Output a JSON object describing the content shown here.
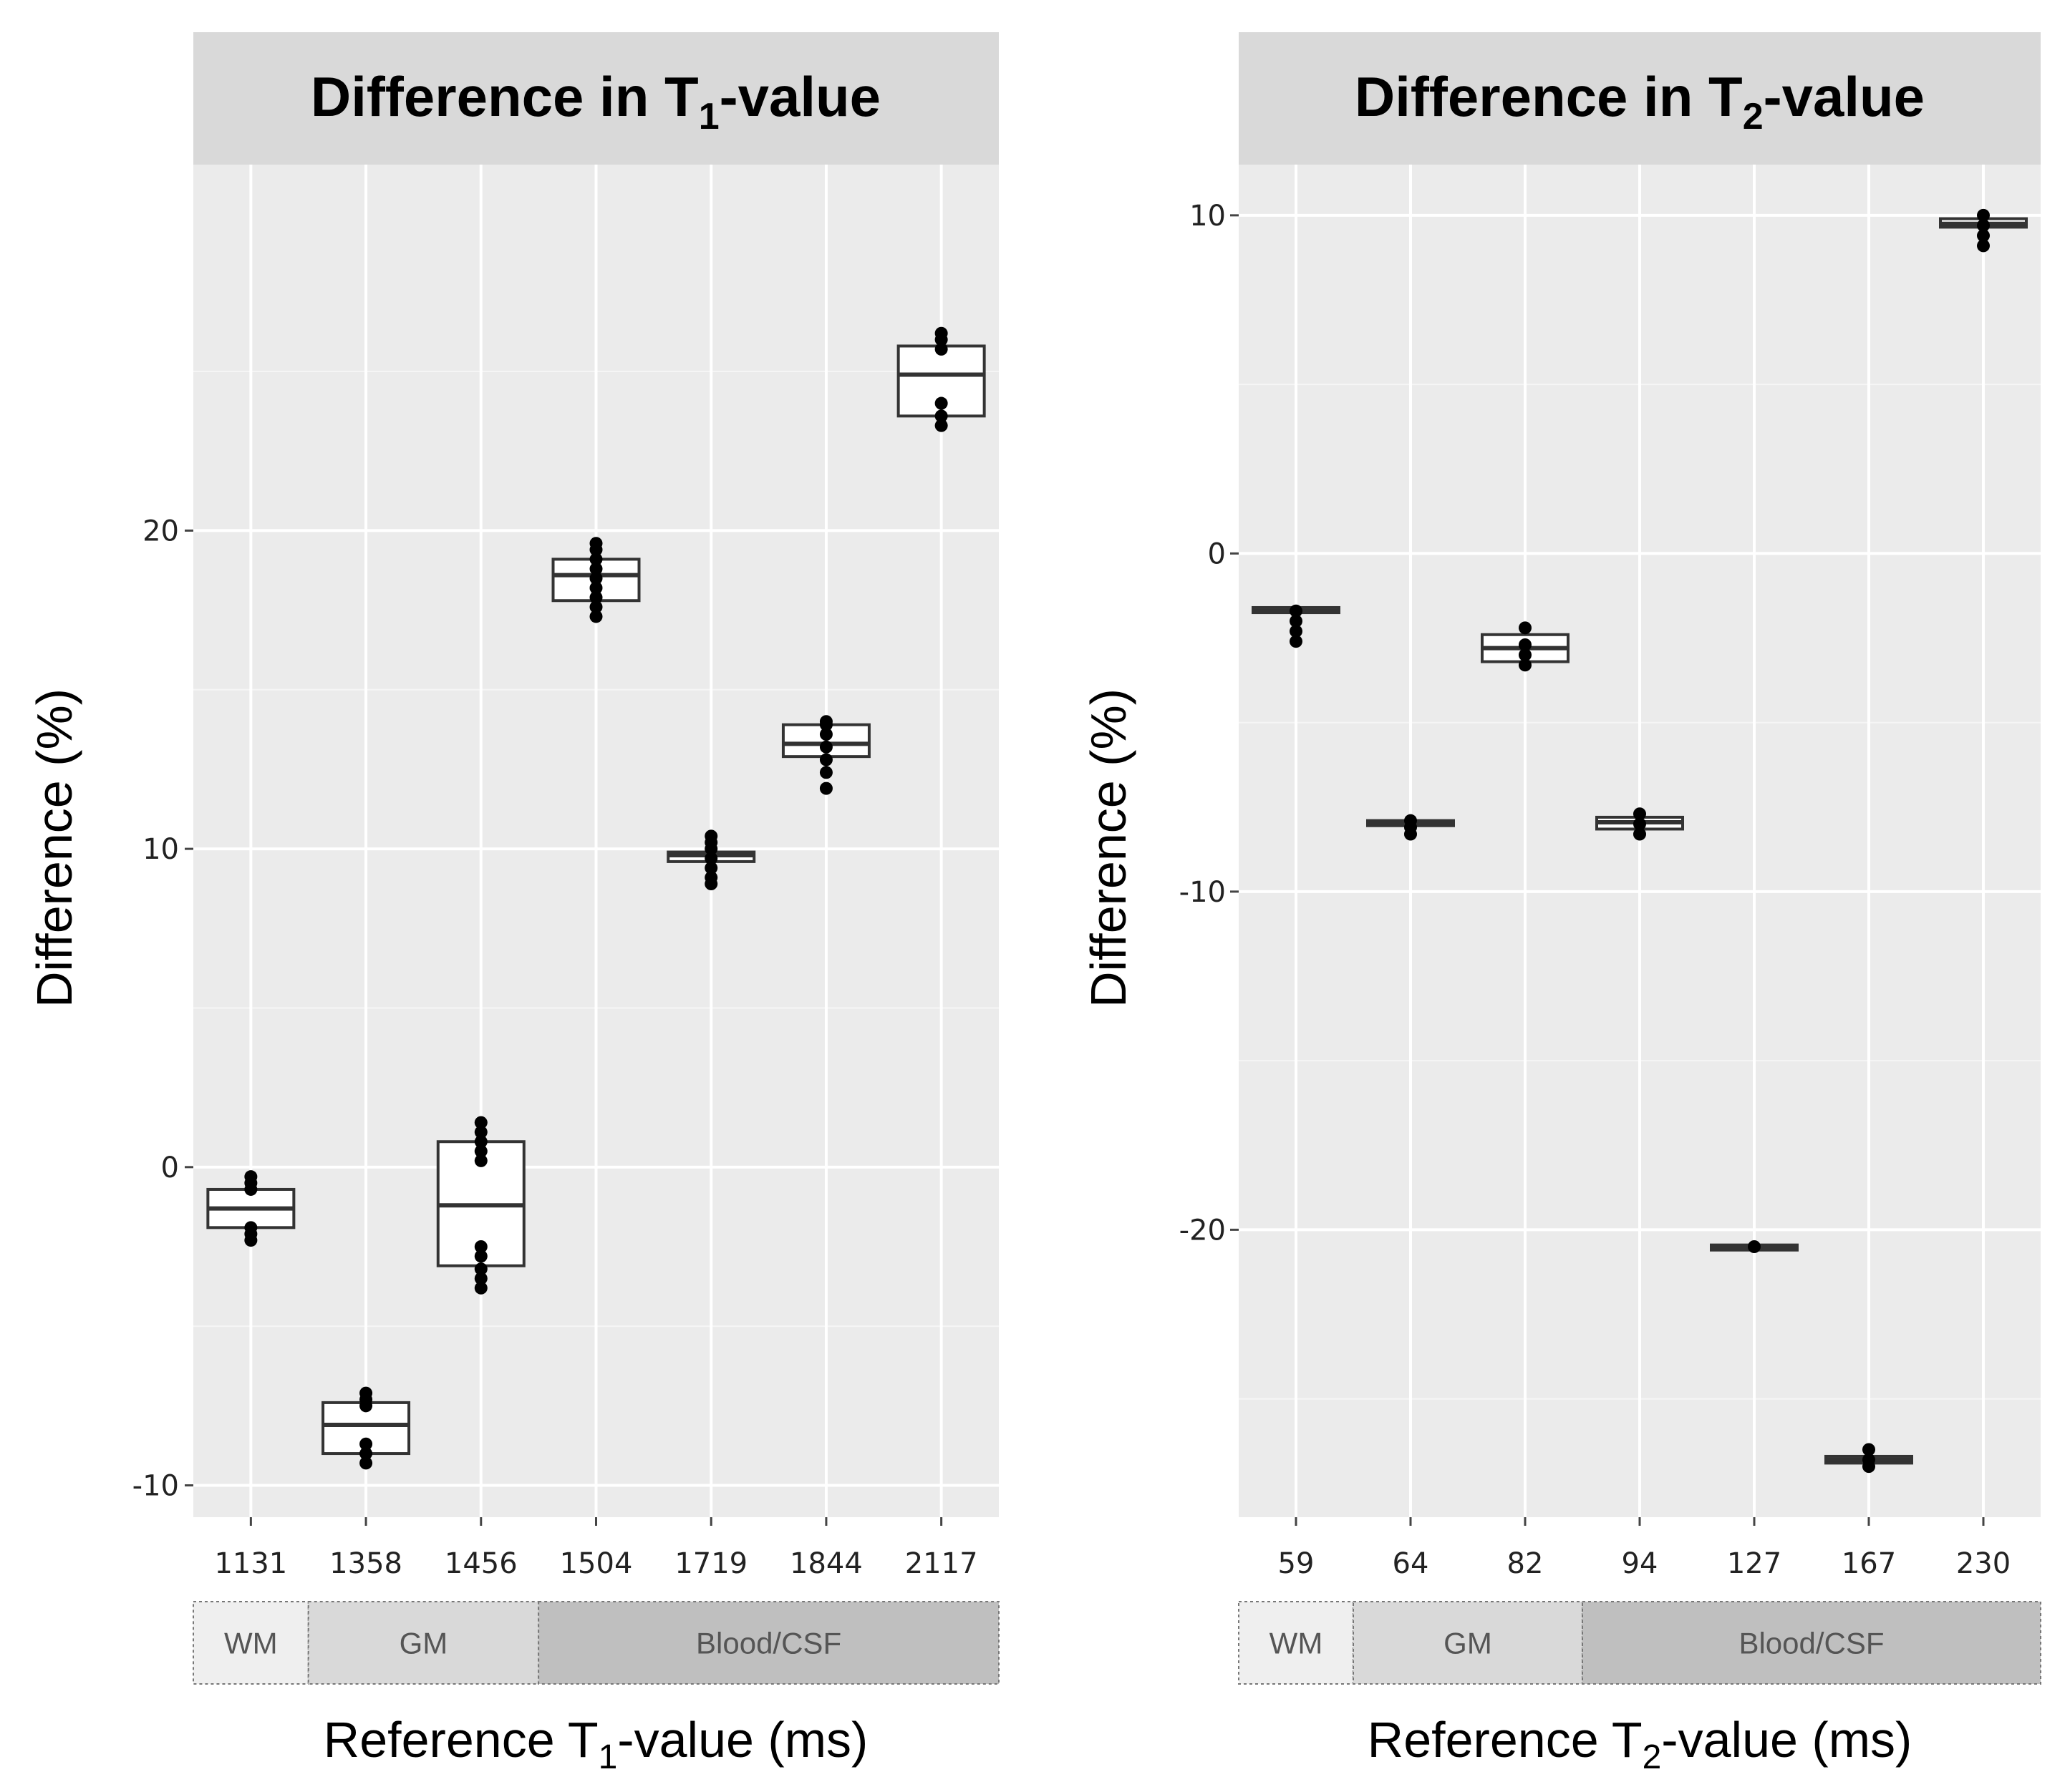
{
  "colors": {
    "panel_bg": "#ebebeb",
    "strip_bg": "#d9d9d9",
    "grid_major": "#ffffff",
    "grid_minor": "#f5f5f5",
    "box_fill": "#ffffff",
    "box_stroke": "#333333",
    "point": "#000000",
    "band_wm": "#efefef",
    "band_gm": "#d9d9d9",
    "band_blood": "#bfbfbf"
  },
  "chart_data": [
    {
      "type": "box",
      "title": "Difference in T",
      "title_sub": "1",
      "title_suffix": "-value",
      "xlabel": "Reference T",
      "xlabel_sub": "1",
      "xlabel_suffix": "-value (ms)",
      "ylabel": "Difference (%)",
      "ylim": [
        -11,
        31.5
      ],
      "yticks": [
        -10,
        0,
        10,
        20
      ],
      "ytick_labels": [
        "-10",
        "0",
        "10",
        "20"
      ],
      "yminor": [
        -5,
        5,
        15,
        25
      ],
      "categories": [
        "1131",
        "1358",
        "1456",
        "1504",
        "1719",
        "1844",
        "2117"
      ],
      "boxes": [
        {
          "q1": -1.9,
          "median": -1.3,
          "q3": -0.7,
          "points": [
            -2.3,
            -2.1,
            -1.9,
            -0.7,
            -0.5,
            -0.3
          ]
        },
        {
          "q1": -9.0,
          "median": -8.1,
          "q3": -7.4,
          "points": [
            -9.3,
            -9.0,
            -8.7,
            -7.5,
            -7.3,
            -7.1
          ]
        },
        {
          "q1": -3.1,
          "median": -1.2,
          "q3": 0.8,
          "points": [
            -3.8,
            -3.5,
            -3.2,
            -2.8,
            -2.5,
            0.2,
            0.5,
            0.8,
            1.1,
            1.4
          ]
        },
        {
          "q1": 17.8,
          "median": 18.6,
          "q3": 19.1,
          "points": [
            17.3,
            17.6,
            17.9,
            18.2,
            18.5,
            18.8,
            19.1,
            19.4,
            19.6
          ]
        },
        {
          "q1": 9.6,
          "median": 9.8,
          "q3": 9.9,
          "points": [
            8.9,
            9.1,
            9.4,
            9.7,
            10.0,
            10.2,
            10.4
          ]
        },
        {
          "q1": 12.9,
          "median": 13.3,
          "q3": 13.9,
          "points": [
            11.9,
            12.4,
            12.8,
            13.2,
            13.6,
            13.9,
            14.0
          ]
        },
        {
          "q1": 23.6,
          "median": 24.9,
          "q3": 25.8,
          "points": [
            23.3,
            23.6,
            24.0,
            25.7,
            26.0,
            26.2
          ]
        }
      ],
      "tissue_bands": [
        {
          "label": "WM",
          "from": 0,
          "to": 1
        },
        {
          "label": "GM",
          "from": 1,
          "to": 3
        },
        {
          "label": "Blood/CSF",
          "from": 3,
          "to": 7
        }
      ]
    },
    {
      "type": "box",
      "title": "Difference in T",
      "title_sub": "2",
      "title_suffix": "-value",
      "xlabel": "Reference T",
      "xlabel_sub": "2",
      "xlabel_suffix": "-value (ms)",
      "ylabel": "Difference (%)",
      "ylim": [
        -28.5,
        11.5
      ],
      "yticks": [
        -20,
        -10,
        0,
        10
      ],
      "ytick_labels": [
        "-20",
        "-10",
        "0",
        "10"
      ],
      "yminor": [
        -25,
        -15,
        -5,
        5
      ],
      "categories": [
        "59",
        "64",
        "82",
        "94",
        "127",
        "167",
        "230"
      ],
      "boxes": [
        {
          "q1": -1.75,
          "median": -1.7,
          "q3": -1.6,
          "points": [
            -2.6,
            -2.3,
            -2.0,
            -1.7
          ]
        },
        {
          "q1": -8.05,
          "median": -8.0,
          "q3": -7.9,
          "points": [
            -8.3,
            -8.1,
            -7.9
          ]
        },
        {
          "q1": -3.2,
          "median": -2.8,
          "q3": -2.4,
          "points": [
            -3.3,
            -3.0,
            -2.7,
            -2.2
          ]
        },
        {
          "q1": -8.15,
          "median": -7.95,
          "q3": -7.8,
          "points": [
            -8.3,
            -8.0,
            -7.7
          ]
        },
        {
          "q1": -20.6,
          "median": -20.5,
          "q3": -20.45,
          "points": [
            -20.5
          ]
        },
        {
          "q1": -26.9,
          "median": -26.8,
          "q3": -26.7,
          "points": [
            -27.0,
            -26.8,
            -26.5
          ]
        },
        {
          "q1": 9.65,
          "median": 9.75,
          "q3": 9.9,
          "points": [
            9.1,
            9.4,
            9.7,
            10.0
          ]
        }
      ],
      "tissue_bands": [
        {
          "label": "WM",
          "from": 0,
          "to": 1
        },
        {
          "label": "GM",
          "from": 1,
          "to": 3
        },
        {
          "label": "Blood/CSF",
          "from": 3,
          "to": 7
        }
      ]
    }
  ]
}
